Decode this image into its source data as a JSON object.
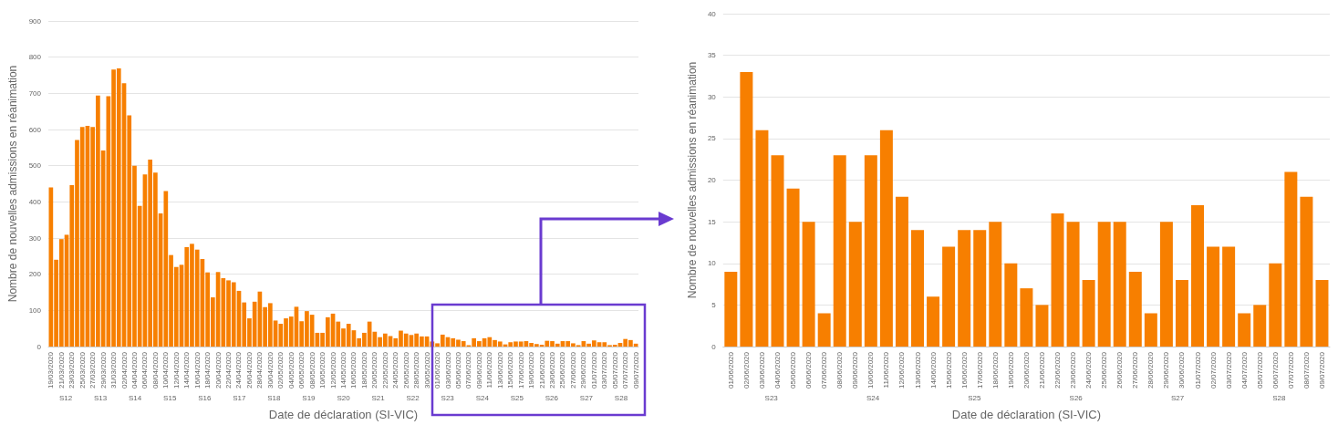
{
  "chart_data": [
    {
      "type": "bar",
      "xlabel": "Date de déclaration (SI-VIC)",
      "ylabel": "Nombre de nouvelles admissions en réanimation",
      "grid": "y",
      "color": "#f77f00",
      "ylim": [
        0,
        900
      ],
      "yticks": [
        0,
        100,
        200,
        300,
        400,
        500,
        600,
        700,
        800,
        900
      ],
      "categories": [
        "19/03/2020",
        null,
        "21/03/2020",
        null,
        "23/03/2020",
        null,
        "25/03/2020",
        null,
        "27/03/2020",
        null,
        "29/03/2020",
        null,
        "31/03/2020",
        null,
        "02/04/2020",
        null,
        "04/04/2020",
        null,
        "06/04/2020",
        null,
        "08/04/2020",
        null,
        "10/04/2020",
        null,
        "12/04/2020",
        null,
        "14/04/2020",
        null,
        "16/04/2020",
        null,
        "18/04/2020",
        null,
        "20/04/2020",
        null,
        "22/04/2020",
        null,
        "24/04/2020",
        null,
        "26/04/2020",
        null,
        "28/04/2020",
        null,
        "30/04/2020",
        null,
        "02/05/2020",
        null,
        "04/05/2020",
        null,
        "06/05/2020",
        null,
        "08/05/2020",
        null,
        "10/05/2020",
        null,
        "12/05/2020",
        null,
        "14/05/2020",
        null,
        "16/05/2020",
        null,
        "18/05/2020",
        null,
        "20/05/2020",
        null,
        "22/05/2020",
        null,
        "24/05/2020",
        null,
        "26/05/2020",
        null,
        "28/05/2020",
        null,
        "30/05/2020",
        null,
        "01/06/2020",
        null,
        "03/06/2020",
        null,
        "05/06/2020",
        null,
        "07/06/2020",
        null,
        "09/06/2020",
        null,
        "11/06/2020",
        null,
        "13/06/2020",
        null,
        "15/06/2020",
        null,
        "17/06/2020",
        null,
        "19/06/2020",
        null,
        "21/06/2020",
        null,
        "23/06/2020",
        null,
        "25/06/2020",
        null,
        "27/06/2020",
        null,
        "29/06/2020",
        null,
        "01/07/2020",
        null,
        "03/07/2020",
        null,
        "05/07/2020",
        null,
        "07/07/2020",
        null,
        "09/07/2020"
      ],
      "values": [
        440,
        240,
        297,
        309,
        446,
        571,
        607,
        610,
        607,
        694,
        542,
        692,
        766,
        769,
        728,
        639,
        500,
        389,
        476,
        517,
        481,
        368,
        430,
        253,
        220,
        226,
        275,
        284,
        268,
        242,
        205,
        136,
        206,
        189,
        183,
        178,
        154,
        122,
        78,
        124,
        152,
        109,
        120,
        72,
        63,
        78,
        83,
        110,
        70,
        98,
        88,
        38,
        38,
        81,
        91,
        69,
        50,
        63,
        45,
        23,
        38,
        69,
        41,
        26,
        36,
        29,
        23,
        44,
        36,
        32,
        36,
        28,
        28,
        14,
        9,
        33,
        26,
        23,
        19,
        15,
        4,
        23,
        15,
        23,
        26,
        18,
        14,
        6,
        12,
        14,
        14,
        15,
        10,
        7,
        5,
        16,
        15,
        8,
        15,
        15,
        9,
        4,
        15,
        8,
        17,
        12,
        12,
        4,
        5,
        10,
        21,
        18,
        8
      ],
      "annotations": [
        "S12",
        "S13",
        "S14",
        "S15",
        "S16",
        "S17",
        "S18",
        "S19",
        "S20",
        "S21",
        "S22",
        "S23",
        "S24",
        "S25",
        "S26",
        "S27",
        "S28"
      ]
    },
    {
      "type": "bar",
      "xlabel": "Date de déclaration (SI-VIC)",
      "ylabel": "Nombre de nouvelles admissions en réanimation",
      "grid": "y",
      "color": "#f77f00",
      "ylim": [
        0,
        40
      ],
      "yticks": [
        0,
        5,
        10,
        15,
        20,
        25,
        30,
        35,
        40
      ],
      "categories": [
        "01/06/2020",
        "02/06/2020",
        "03/06/2020",
        "04/06/2020",
        "05/06/2020",
        "06/06/2020",
        "07/06/2020",
        "08/06/2020",
        "09/06/2020",
        "10/06/2020",
        "11/06/2020",
        "12/06/2020",
        "13/06/2020",
        "14/06/2020",
        "15/06/2020",
        "16/06/2020",
        "17/06/2020",
        "18/06/2020",
        "19/06/2020",
        "20/06/2020",
        "21/06/2020",
        "22/06/2020",
        "23/06/2020",
        "24/06/2020",
        "25/06/2020",
        "26/06/2020",
        "27/06/2020",
        "28/06/2020",
        "29/06/2020",
        "30/06/2020",
        "01/07/2020",
        "02/07/2020",
        "03/07/2020",
        "04/07/2020",
        "05/07/2020",
        "06/07/2020",
        "07/07/2020",
        "08/07/2020",
        "09/07/2020"
      ],
      "values": [
        9,
        33,
        26,
        23,
        19,
        15,
        4,
        23,
        15,
        23,
        26,
        18,
        14,
        6,
        12,
        14,
        14,
        15,
        10,
        7,
        5,
        16,
        15,
        8,
        15,
        15,
        9,
        4,
        15,
        8,
        17,
        12,
        12,
        4,
        5,
        10,
        21,
        18,
        8
      ],
      "annotations": [
        "S23",
        "S24",
        "S25",
        "S26",
        "S27",
        "S28"
      ]
    }
  ]
}
